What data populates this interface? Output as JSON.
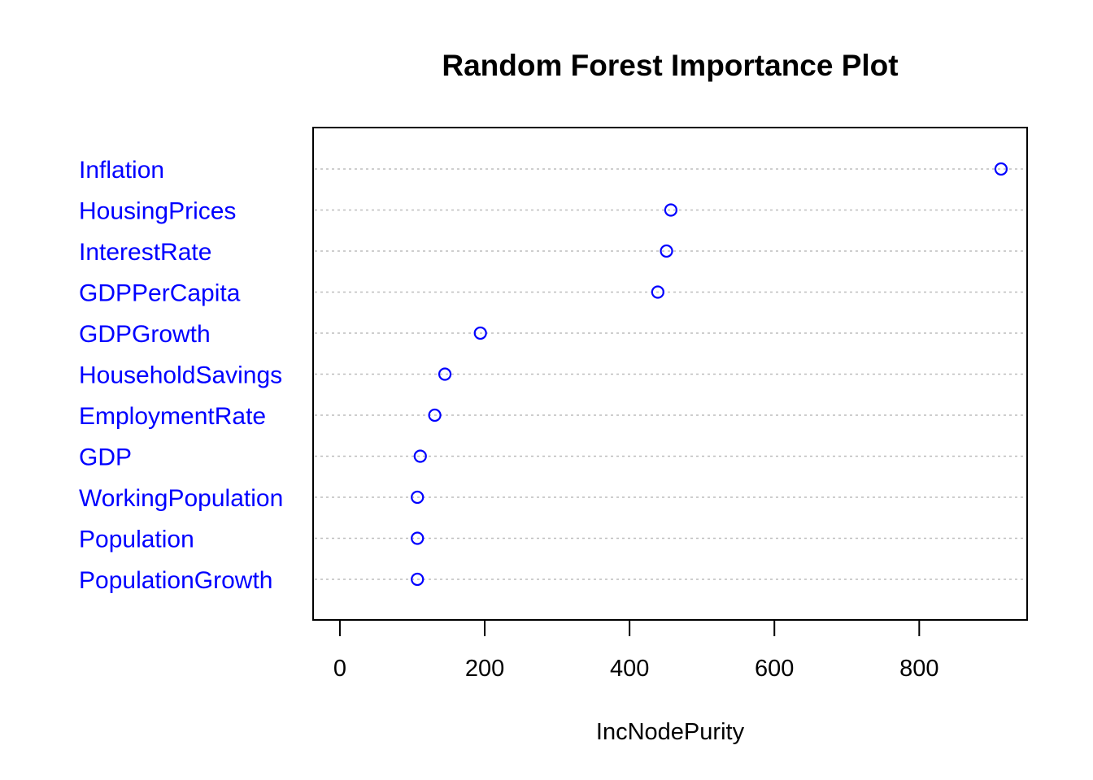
{
  "chart_data": {
    "type": "scatter",
    "title": "Random Forest Importance Plot",
    "xlabel": "IncNodePurity",
    "ylabel": "",
    "xlim": [
      -37,
      949
    ],
    "xticks": [
      0,
      200,
      400,
      600,
      800
    ],
    "grid": "horizontal dotted",
    "categories": [
      "Inflation",
      "HousingPrices",
      "InterestRate",
      "GDPPerCapita",
      "GDPGrowth",
      "HouseholdSavings",
      "EmploymentRate",
      "GDP",
      "WorkingPopulation",
      "Population",
      "PopulationGrowth"
    ],
    "values": [
      913,
      457,
      451,
      439,
      194,
      145,
      131,
      111,
      107,
      107,
      107
    ],
    "series": [
      {
        "values": [
          913,
          457,
          451,
          439,
          194,
          145,
          131,
          111,
          107,
          107,
          107
        ]
      }
    ]
  },
  "colors": {
    "points": "#0000ff",
    "labels": "#0000ff",
    "grid": "#bebebe",
    "frame": "#000000"
  }
}
